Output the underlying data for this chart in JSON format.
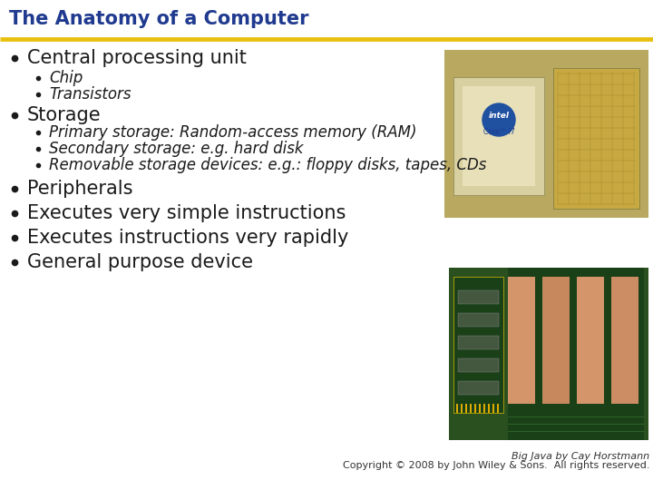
{
  "title": "The Anatomy of a Computer",
  "title_color": "#1F3A8F",
  "title_bar_color": "#E8C010",
  "background_color": "#FFFFFF",
  "bullet_items": [
    {
      "level": 1,
      "text": "Central processing unit",
      "italic": false
    },
    {
      "level": 2,
      "text": "Chip",
      "italic": true
    },
    {
      "level": 2,
      "text": "Transistors",
      "italic": true
    },
    {
      "level": 1,
      "text": "Storage",
      "italic": false
    },
    {
      "level": 2,
      "text": "Primary storage: Random-access memory (RAM)",
      "italic": true
    },
    {
      "level": 2,
      "text": "Secondary storage: e.g. hard disk",
      "italic": true
    },
    {
      "level": 2,
      "text": "Removable storage devices: e.g.: floppy disks, tapes, CDs",
      "italic": true
    },
    {
      "level": 1,
      "text": "Peripherals",
      "italic": false
    },
    {
      "level": 1,
      "text": "Executes very simple instructions",
      "italic": false
    },
    {
      "level": 1,
      "text": "Executes instructions very rapidly",
      "italic": false
    },
    {
      "level": 1,
      "text": "General purpose device",
      "italic": false
    }
  ],
  "footer_line1": "Big Java by Cay Horstmann",
  "footer_line2": "Copyright © 2008 by John Wiley & Sons.  All rights reserved.",
  "font_size_title": 15,
  "font_size_l1": 15,
  "font_size_l2": 12,
  "font_size_footer": 8
}
